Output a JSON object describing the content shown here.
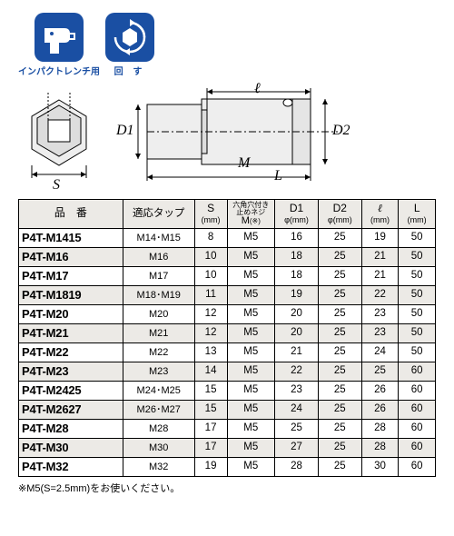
{
  "colors": {
    "icon_bg": "#1a4fa3",
    "icon_label": "#1a4fa3",
    "header_bg": "#eceae6",
    "stripe_bg": "#eceae6",
    "border": "#000000",
    "hex_fill": "#ffffff"
  },
  "icons": {
    "impact": {
      "label": "インパクトレンチ用"
    },
    "turn": {
      "label": "回 す"
    }
  },
  "diagram": {
    "S": "S",
    "D1": "D1",
    "D2": "D2",
    "M": "M",
    "L": "L",
    "ell": "ℓ"
  },
  "headers": {
    "pn": "品　番",
    "tap": "適応タップ",
    "S": {
      "main": "S",
      "sub": "(mm)"
    },
    "M": {
      "line1": "六角穴付き",
      "line2": "止めネジ",
      "main": "M",
      "sub": "(※)"
    },
    "D1": {
      "main": "D1",
      "sub2": "φ(mm)"
    },
    "D2": {
      "main": "D2",
      "sub2": "φ(mm)"
    },
    "ell": {
      "main": "ℓ",
      "sub": "(mm)"
    },
    "L": {
      "main": "L",
      "sub": "(mm)"
    }
  },
  "column_widths": [
    "96",
    "66",
    "30",
    "44",
    "40",
    "40",
    "34",
    "34"
  ],
  "rows": [
    {
      "pn": "P4T-M1415",
      "tap": "M14･M15",
      "S": "8",
      "M": "M5",
      "D1": "16",
      "D2": "25",
      "ell": "19",
      "L": "50",
      "stripe": false
    },
    {
      "pn": "P4T-M16",
      "tap": "M16",
      "S": "10",
      "M": "M5",
      "D1": "18",
      "D2": "25",
      "ell": "21",
      "L": "50",
      "stripe": true
    },
    {
      "pn": "P4T-M17",
      "tap": "M17",
      "S": "10",
      "M": "M5",
      "D1": "18",
      "D2": "25",
      "ell": "21",
      "L": "50",
      "stripe": false
    },
    {
      "pn": "P4T-M1819",
      "tap": "M18･M19",
      "S": "11",
      "M": "M5",
      "D1": "19",
      "D2": "25",
      "ell": "22",
      "L": "50",
      "stripe": true
    },
    {
      "pn": "P4T-M20",
      "tap": "M20",
      "S": "12",
      "M": "M5",
      "D1": "20",
      "D2": "25",
      "ell": "23",
      "L": "50",
      "stripe": false
    },
    {
      "pn": "P4T-M21",
      "tap": "M21",
      "S": "12",
      "M": "M5",
      "D1": "20",
      "D2": "25",
      "ell": "23",
      "L": "50",
      "stripe": true
    },
    {
      "pn": "P4T-M22",
      "tap": "M22",
      "S": "13",
      "M": "M5",
      "D1": "21",
      "D2": "25",
      "ell": "24",
      "L": "50",
      "stripe": false
    },
    {
      "pn": "P4T-M23",
      "tap": "M23",
      "S": "14",
      "M": "M5",
      "D1": "22",
      "D2": "25",
      "ell": "25",
      "L": "60",
      "stripe": true
    },
    {
      "pn": "P4T-M2425",
      "tap": "M24･M25",
      "S": "15",
      "M": "M5",
      "D1": "23",
      "D2": "25",
      "ell": "26",
      "L": "60",
      "stripe": false
    },
    {
      "pn": "P4T-M2627",
      "tap": "M26･M27",
      "S": "15",
      "M": "M5",
      "D1": "24",
      "D2": "25",
      "ell": "26",
      "L": "60",
      "stripe": true
    },
    {
      "pn": "P4T-M28",
      "tap": "M28",
      "S": "17",
      "M": "M5",
      "D1": "25",
      "D2": "25",
      "ell": "28",
      "L": "60",
      "stripe": false
    },
    {
      "pn": "P4T-M30",
      "tap": "M30",
      "S": "17",
      "M": "M5",
      "D1": "27",
      "D2": "25",
      "ell": "28",
      "L": "60",
      "stripe": true
    },
    {
      "pn": "P4T-M32",
      "tap": "M32",
      "S": "19",
      "M": "M5",
      "D1": "28",
      "D2": "25",
      "ell": "30",
      "L": "60",
      "stripe": false
    }
  ],
  "footnote": "※M5(S=2.5mm)をお使いください。"
}
